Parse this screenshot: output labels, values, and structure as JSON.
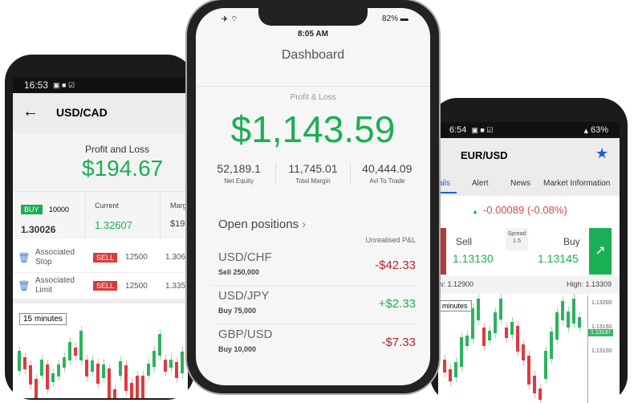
{
  "left_phone": {
    "status_time": "16:53",
    "header": {
      "back_icon": "arrow-left-icon",
      "title": "USD/CAD"
    },
    "pnl_label": "Profit and Loss",
    "pnl_value": "$194.67",
    "summary": {
      "side": "BUY",
      "quantity": "10000",
      "open_price": "1.30026",
      "current_label": "Current",
      "current_price": "1.32607",
      "margin_label": "Marg",
      "margin_value": "$19"
    },
    "orders": [
      {
        "label": "Associated Stop",
        "side": "SELL",
        "quantity": "12500",
        "price": "1.306"
      },
      {
        "label": "Associated Limit",
        "side": "SELL",
        "quantity": "12500",
        "price": "1.335"
      }
    ],
    "timeframe": "15 minutes"
  },
  "center_phone": {
    "status": {
      "battery": "82%",
      "time": "8:05 AM"
    },
    "title": "Dashboard",
    "pnl_label": "Profit & Loss",
    "pnl_value": "$1,143.59",
    "stats": [
      {
        "value": "52,189.1",
        "label": "Net Equity"
      },
      {
        "value": "11,745.01",
        "label": "Total Margin"
      },
      {
        "value": "40,444.09",
        "label": "Avl To Trade"
      }
    ],
    "open_positions_label": "Open positions",
    "unrealised_label": "Unrealised P&L",
    "positions": [
      {
        "pair": "USD/CHF",
        "detail": "Sell 250,000",
        "pnl": "-$42.33",
        "positive": false
      },
      {
        "pair": "USD/JPY",
        "detail": "Buy 75,000",
        "pnl": "+$2.33",
        "positive": true
      },
      {
        "pair": "GBP/USD",
        "detail": "Buy 10,000",
        "pnl": "-$7.33",
        "positive": false
      }
    ]
  },
  "right_phone": {
    "status": {
      "time": "6:54",
      "battery": "63%"
    },
    "title": "EUR/USD",
    "star_icon": "star-icon",
    "tabs": [
      {
        "label": "ails",
        "active": true
      },
      {
        "label": "Alert"
      },
      {
        "label": "News"
      },
      {
        "label": "Market Information"
      }
    ],
    "change": "-0.00089 (-0.08%)",
    "sell_label": "Sell",
    "sell_price": "1.13130",
    "spread_label": "Spread",
    "spread_value": "1.5",
    "buy_label": "Buy",
    "buy_price": "1.13145",
    "low": "w: 1.12900",
    "high": "High: 1.13309",
    "timeframe": "minutes",
    "axis": [
      "1.13200",
      "1.13150",
      "1.13137",
      "1.13100"
    ]
  },
  "colors": {
    "green": "#1aaf54",
    "red": "#b3262b",
    "accent": "#1f5fd6"
  }
}
